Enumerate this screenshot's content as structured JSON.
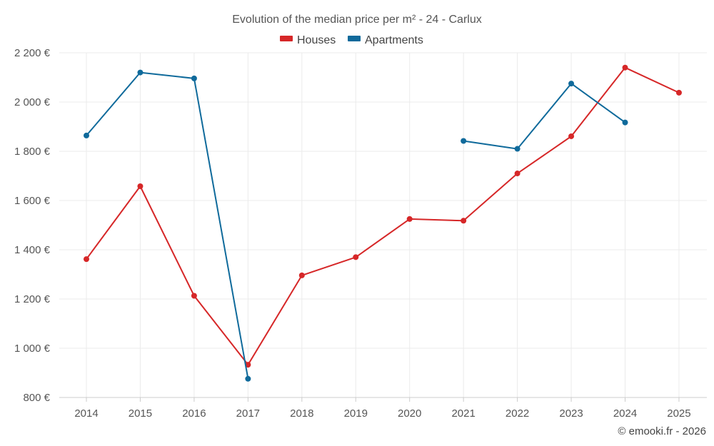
{
  "chart_data": {
    "type": "line",
    "title": "Evolution of the median price per m² - 24 - Carlux",
    "categories": [
      "2014",
      "2015",
      "2016",
      "2017",
      "2018",
      "2019",
      "2020",
      "2021",
      "2022",
      "2023",
      "2024",
      "2025"
    ],
    "ylim": [
      800,
      2200
    ],
    "yticks": [
      800,
      1000,
      1200,
      1400,
      1600,
      1800,
      2000,
      2200
    ],
    "ytick_labels": [
      "800 €",
      "1 000 €",
      "1 200 €",
      "1 400 €",
      "1 600 €",
      "1 800 €",
      "2 000 €",
      "2 200 €"
    ],
    "xlabel": "",
    "ylabel": "",
    "grid": true,
    "legend_position": "top-center",
    "series": [
      {
        "name": "Houses",
        "color": "#d62728",
        "values": [
          1362,
          1658,
          1213,
          933,
          1296,
          1370,
          1525,
          1518,
          1710,
          1861,
          2140,
          2038
        ]
      },
      {
        "name": "Apartments",
        "color": "#0f6a9b",
        "values": [
          1864,
          2120,
          2096,
          876,
          null,
          null,
          null,
          1842,
          1810,
          2075,
          1917,
          null
        ]
      }
    ]
  },
  "credit": "© emooki.fr - 2026"
}
